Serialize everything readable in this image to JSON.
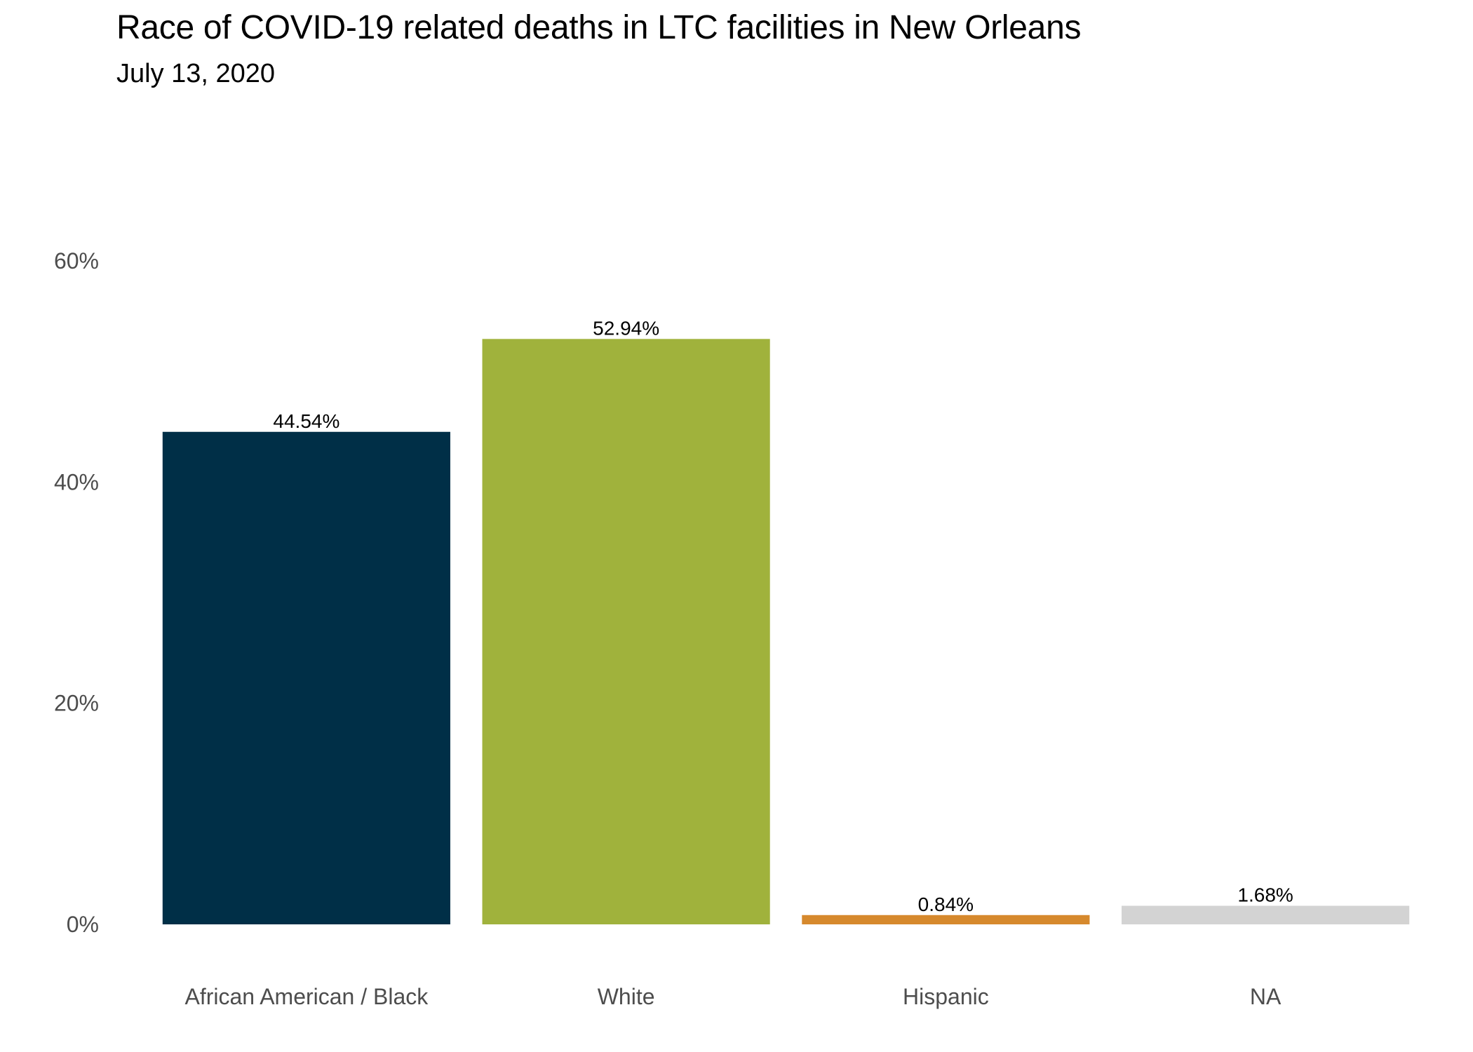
{
  "header": {
    "title": "Race of COVID-19 related deaths in LTC facilities in New Orleans",
    "subtitle": "July 13, 2020"
  },
  "chart_data": {
    "type": "bar",
    "title": "Race of COVID-19 related deaths in LTC facilities in New Orleans",
    "subtitle": "July 13, 2020",
    "xlabel": "",
    "ylabel": "",
    "categories": [
      "African American / Black",
      "White",
      "Hispanic",
      "NA"
    ],
    "values": [
      44.54,
      52.94,
      0.84,
      1.68
    ],
    "value_labels": [
      "44.54%",
      "52.94%",
      "0.84%",
      "1.68%"
    ],
    "colors": [
      "#002f47",
      "#a0b23c",
      "#d6892d",
      "#d3d3d3"
    ],
    "ylim": [
      0,
      60
    ],
    "yticks": [
      0,
      20,
      40,
      60
    ],
    "ytick_labels": [
      "0%",
      "20%",
      "40%",
      "60%"
    ],
    "grid": false,
    "legend": "none"
  }
}
